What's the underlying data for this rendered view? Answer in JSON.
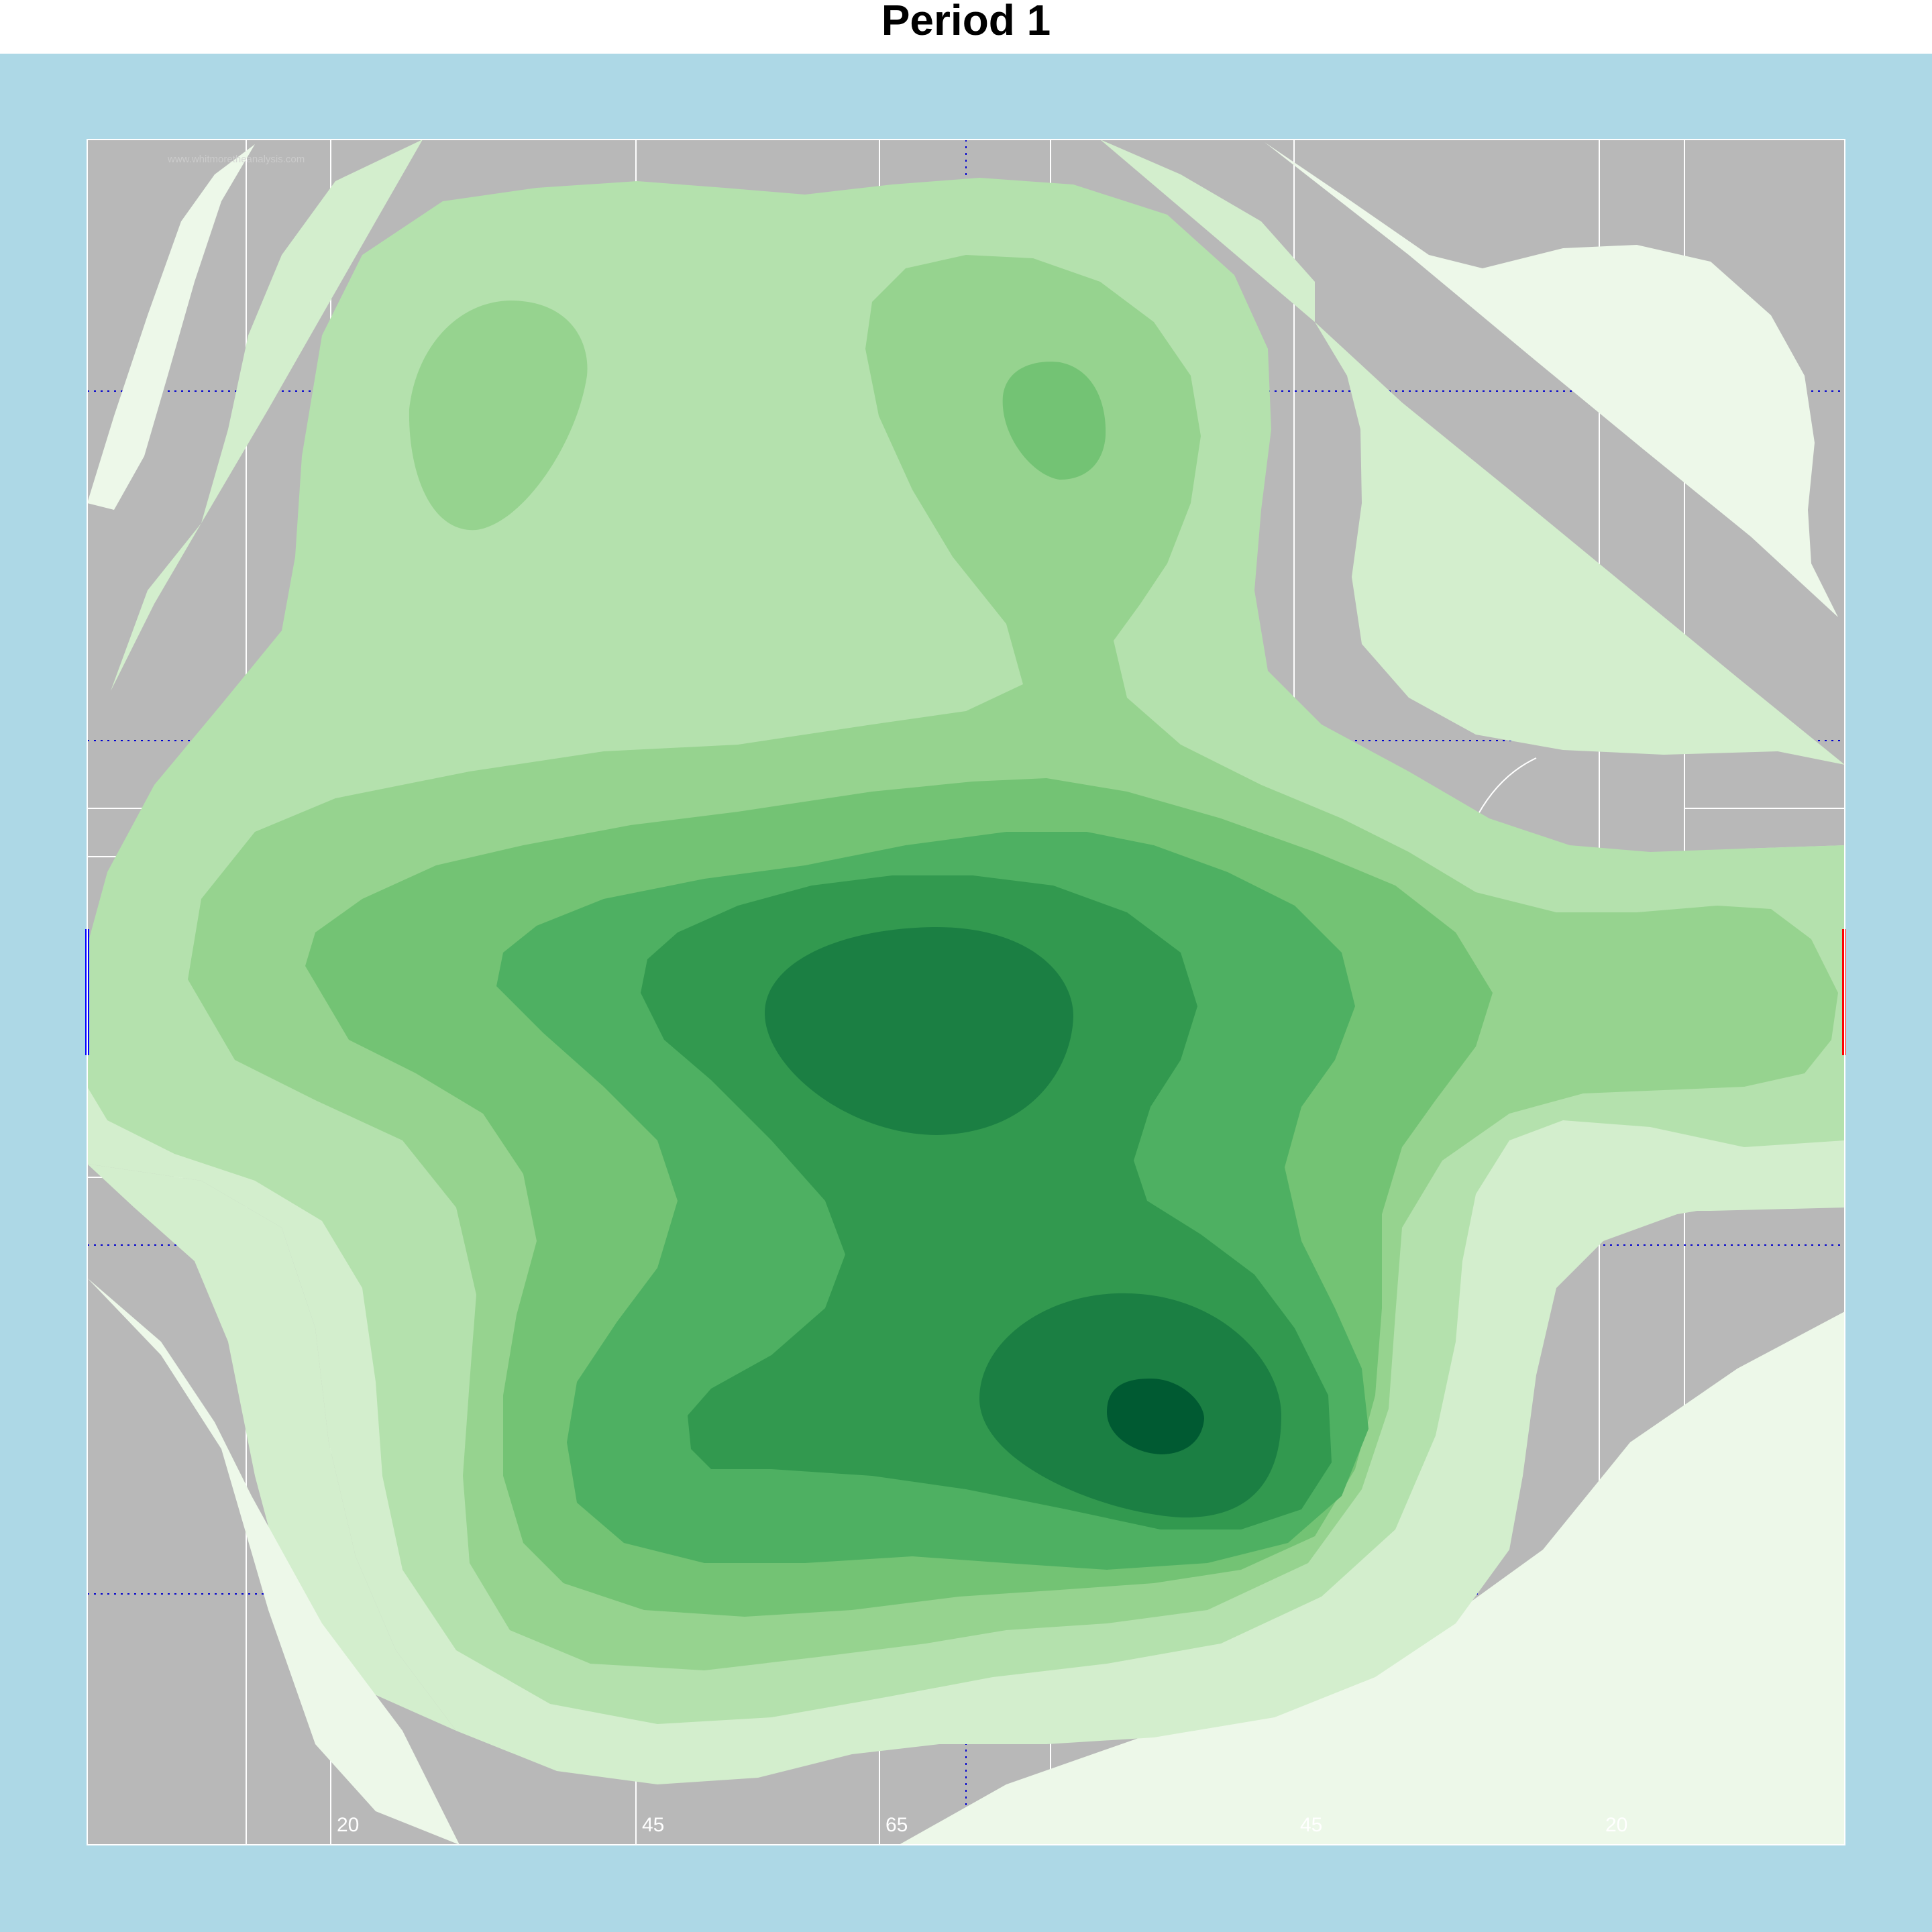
{
  "chart_data": {
    "type": "heatmap",
    "subtype": "2d-density-contour",
    "title": "Period 1",
    "pitch": {
      "surface": "gaelic-football",
      "background_color": "#b8b8b8",
      "line_color": "#ffffff",
      "halfway_line_color": "#0000cd",
      "left_goal_color": "#0000ff",
      "right_goal_color": "#ff0000",
      "distance_labels": [
        "20",
        "45",
        "65",
        "45",
        "20"
      ],
      "watermark": "www.whitmoretheanalysis.com"
    },
    "colorscale": [
      "#edf8e9",
      "#d3eecd",
      "#b4e1ad",
      "#96d38f",
      "#73c374",
      "#4eb062",
      "#32994f",
      "#1b7f43",
      "#005a32"
    ],
    "density_levels": [
      1,
      2,
      3,
      4,
      5,
      6,
      7,
      8,
      9
    ],
    "density_peaks": [
      {
        "label": "primary",
        "x_fraction": 0.608,
        "y_fraction": 0.749,
        "level": 9
      },
      {
        "label": "secondary",
        "x_fraction": 0.475,
        "y_fraction": 0.522,
        "level": 8
      },
      {
        "label": "upper",
        "x_fraction": 0.55,
        "y_fraction": 0.172,
        "level": 5
      },
      {
        "label": "upper-left",
        "x_fraction": 0.233,
        "y_fraction": 0.164,
        "level": 4
      }
    ],
    "grid": false,
    "legend": "none"
  }
}
